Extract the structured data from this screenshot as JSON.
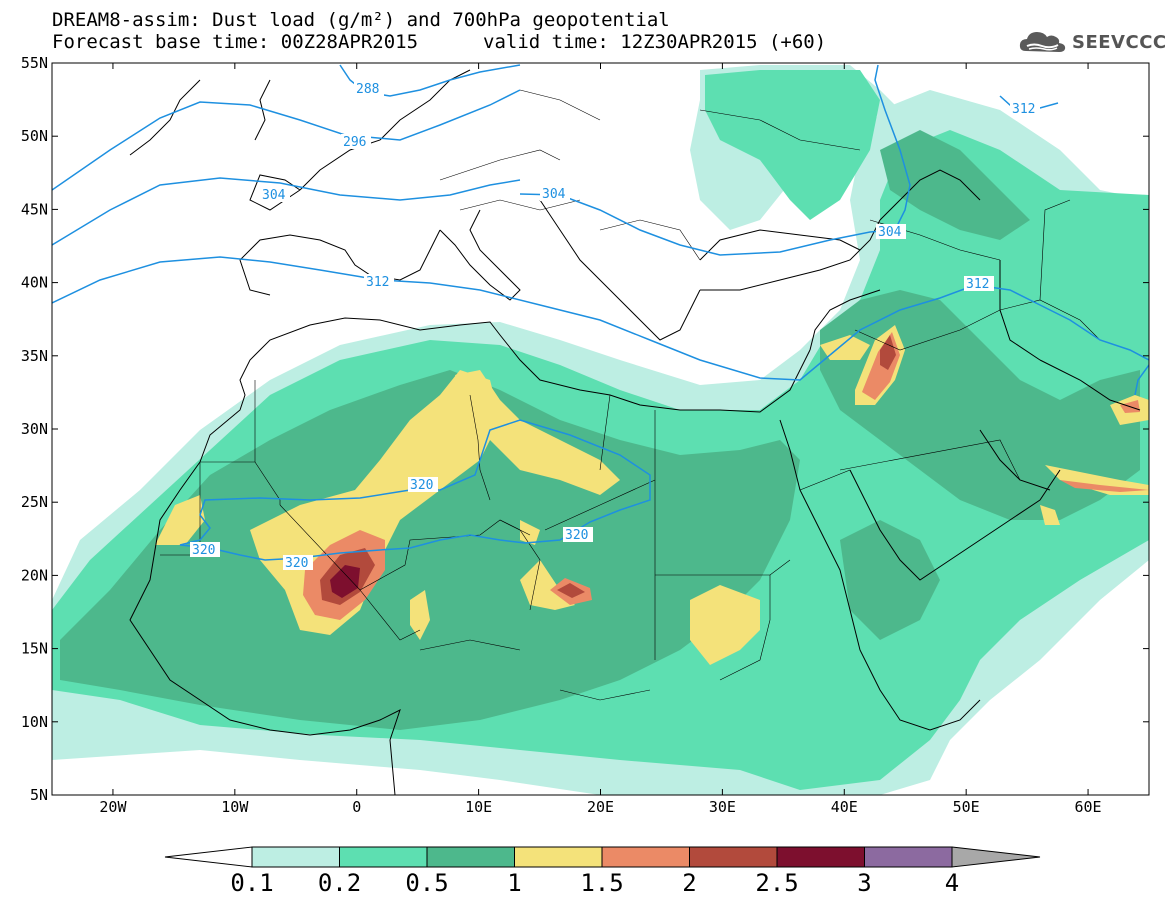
{
  "title": {
    "line1": "DREAM8-assim: Dust load (g/m²) and 700hPa geopotential",
    "line2": "Forecast base time: 00Z28APR2015",
    "valid": "valid time: 12Z30APR2015 (+60)"
  },
  "logo": {
    "icon": "cloud-icon",
    "text": "SEEVCCC"
  },
  "axes": {
    "lat_labels": [
      "55N",
      "50N",
      "45N",
      "40N",
      "35N",
      "30N",
      "25N",
      "20N",
      "15N",
      "10N",
      "5N"
    ],
    "lon_labels": [
      "20W",
      "10W",
      "0",
      "10E",
      "20E",
      "30E",
      "40E",
      "50E",
      "60E"
    ],
    "lat_range": [
      5,
      55
    ],
    "lon_range": [
      -25,
      65
    ]
  },
  "contours": {
    "labels": [
      "288",
      "296",
      "304",
      "304",
      "304",
      "312",
      "312",
      "312",
      "320",
      "320",
      "320",
      "320"
    ],
    "color": "#1e90e0"
  },
  "colorbar": {
    "ticks": [
      "0.1",
      "0.2",
      "0.5",
      "1",
      "1.5",
      "2",
      "2.5",
      "3",
      "4"
    ],
    "colors": [
      "#bdeee3",
      "#5ddfb1",
      "#4db88c",
      "#f4e27a",
      "#eb8a66",
      "#b24a3c",
      "#7d0f2e",
      "#8c6aa0",
      "#a8a8a8"
    ]
  }
}
